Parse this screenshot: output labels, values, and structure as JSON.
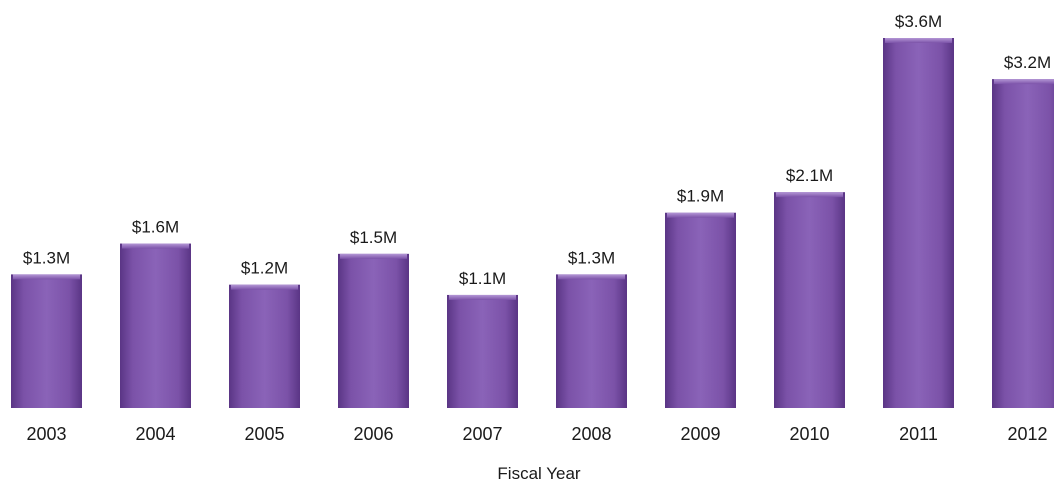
{
  "chart_data": {
    "type": "bar",
    "xlabel": "Fiscal Year",
    "ylabel": "",
    "categories": [
      "2003",
      "2004",
      "2005",
      "2006",
      "2007",
      "2008",
      "2009",
      "2010",
      "2011",
      "2012"
    ],
    "values": [
      1.3,
      1.6,
      1.2,
      1.5,
      1.1,
      1.3,
      1.9,
      2.1,
      3.6,
      3.2
    ],
    "data_labels": [
      "$1.3M",
      "$1.6M",
      "$1.2M",
      "$1.5M",
      "$1.1M",
      "$1.3M",
      "$1.9M",
      "$2.1M",
      "$3.6M",
      "$3.2M"
    ],
    "ylim": [
      0,
      3.6
    ],
    "grid": false,
    "legend": "none",
    "colors": {
      "bar": "#7b52a8",
      "bar_dark": "#5a3585",
      "bar_light": "#9a74c4"
    }
  }
}
